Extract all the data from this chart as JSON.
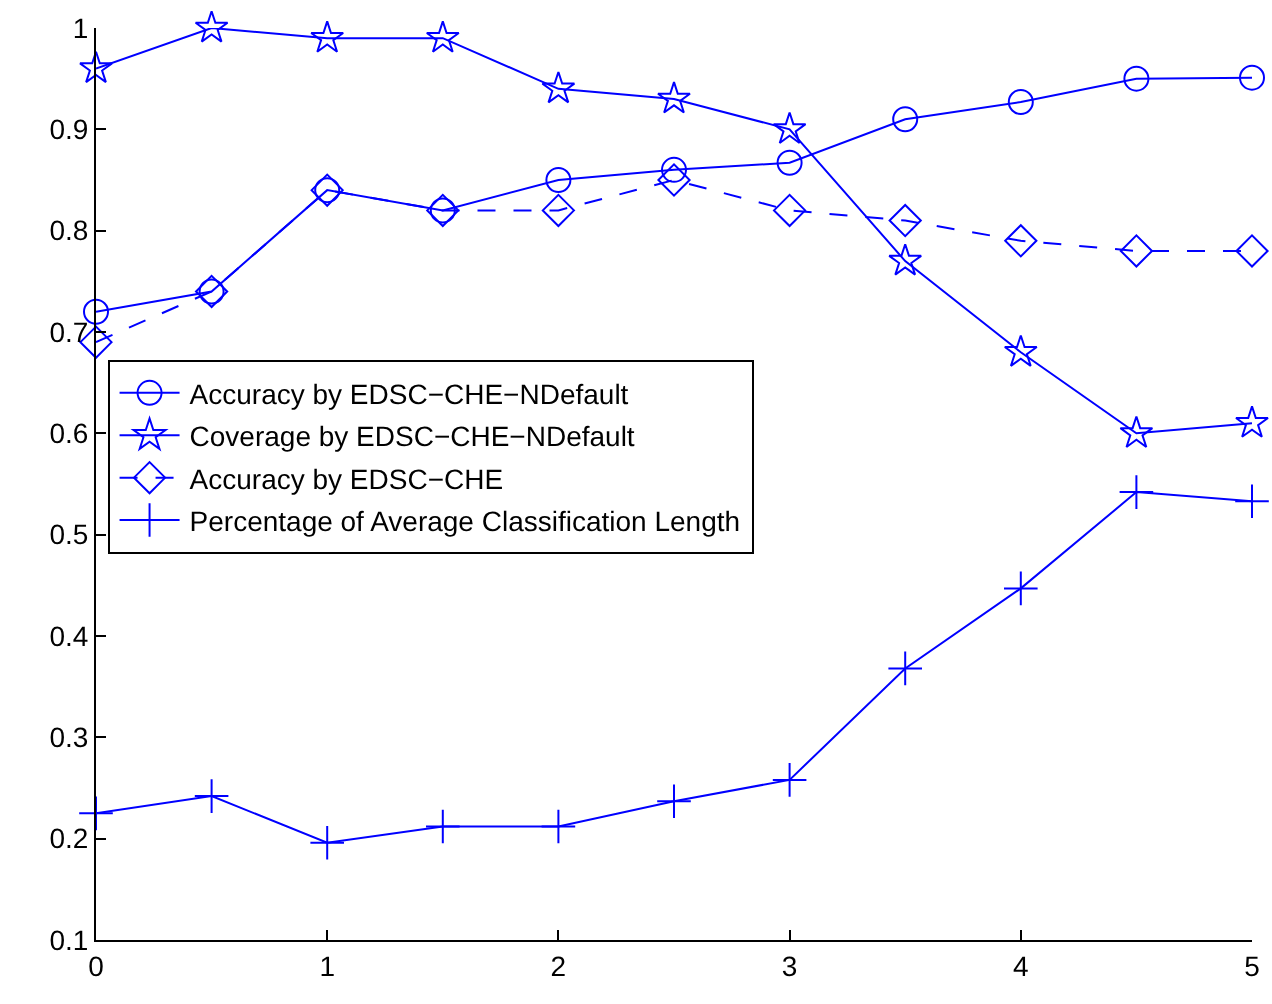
{
  "chart_data": {
    "type": "line",
    "x": [
      0,
      0.5,
      1,
      1.5,
      2,
      2.5,
      3,
      3.5,
      4,
      4.5,
      5
    ],
    "xlim": [
      0,
      5
    ],
    "xticks": [
      0,
      1,
      2,
      3,
      4,
      5
    ],
    "ylim": [
      0.1,
      1
    ],
    "yticks": [
      0.1,
      0.2,
      0.3,
      0.4,
      0.5,
      0.6,
      0.7,
      0.8,
      0.9,
      1
    ],
    "legend": "left",
    "series": [
      {
        "name": "Accuracy by EDSC−CHE−NDefault",
        "color": "#0000ff",
        "marker": "circle",
        "line_style": "solid",
        "values": [
          0.72,
          0.74,
          0.84,
          0.82,
          0.85,
          0.86,
          0.867,
          0.91,
          0.927,
          0.95,
          0.951
        ]
      },
      {
        "name": "Coverage by EDSC−CHE−NDefault",
        "color": "#0000ff",
        "marker": "star",
        "line_style": "solid",
        "values": [
          0.96,
          1.0,
          0.99,
          0.99,
          0.94,
          0.93,
          0.9,
          0.77,
          0.68,
          0.6,
          0.61
        ]
      },
      {
        "name": "Accuracy by EDSC−CHE",
        "color": "#0000ff",
        "marker": "diamond",
        "line_style": "dashed",
        "values": [
          0.69,
          0.74,
          0.84,
          0.82,
          0.82,
          0.85,
          0.82,
          0.81,
          0.79,
          0.78,
          0.78
        ]
      },
      {
        "name": "Percentage of Average Classification Length",
        "color": "#0000ff",
        "marker": "cross",
        "line_style": "solid",
        "values": [
          0.225,
          0.242,
          0.196,
          0.212,
          0.212,
          0.237,
          0.258,
          0.368,
          0.447,
          0.542,
          0.533
        ]
      }
    ]
  }
}
